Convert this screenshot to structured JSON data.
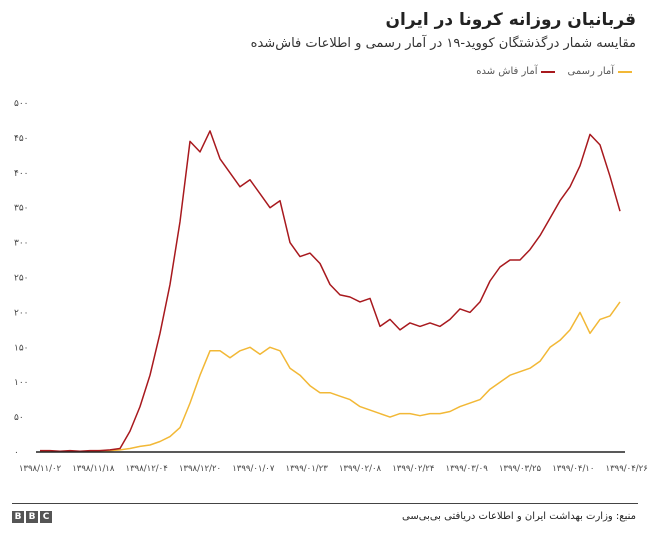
{
  "header": {
    "title": "قربانیان روزانه کرونا در ایران",
    "subtitle": "مقایسه شمار درگذشتگان کووید-۱۹ در آمار رسمی و اطلاعات فاش‌شده"
  },
  "legend": [
    {
      "label": "آمار رسمی",
      "color": "#f2b836"
    },
    {
      "label": "آمار فاش شده",
      "color": "#a8191e"
    }
  ],
  "footer": {
    "source": "منبع: وزارت بهداشت ایران و اطلاعات دریافتی بی‌بی‌سی",
    "logo": "BBC"
  },
  "chart_data": {
    "type": "line",
    "title": "قربانیان روزانه کرونا در ایران",
    "ylim": [
      0,
      500
    ],
    "yticks": [
      0,
      50,
      100,
      150,
      200,
      250,
      300,
      350,
      400,
      450,
      500
    ],
    "ytick_labels": [
      "۰",
      "۵۰",
      "۱۰۰",
      "۱۵۰",
      "۲۰۰",
      "۲۵۰",
      "۳۰۰",
      "۳۵۰",
      "۴۰۰",
      "۴۵۰",
      "۵۰۰"
    ],
    "x_labels": [
      "۱۳۹۸/۱۱/۰۲",
      "۱۳۹۸/۱۱/۱۸",
      "۱۳۹۸/۱۲/۰۴",
      "۱۳۹۸/۱۲/۲۰",
      "۱۳۹۹/۰۱/۰۷",
      "۱۳۹۹/۰۱/۲۳",
      "۱۳۹۹/۰۲/۰۸",
      "۱۳۹۹/۰۲/۲۴",
      "۱۳۹۹/۰۳/۰۹",
      "۱۳۹۹/۰۳/۲۵",
      "۱۳۹۹/۰۴/۱۰",
      "۱۳۹۹/۰۴/۲۶"
    ],
    "x_label_interval_days": 16,
    "sample_interval_days": 3,
    "series": [
      {
        "name": "آمار فاش شده",
        "color": "#a8191e",
        "values": [
          2,
          2,
          1,
          2,
          1,
          2,
          2,
          3,
          5,
          30,
          65,
          110,
          170,
          240,
          330,
          445,
          430,
          460,
          420,
          400,
          380,
          390,
          370,
          350,
          360,
          300,
          280,
          285,
          270,
          240,
          225,
          222,
          215,
          220,
          180,
          190,
          175,
          185,
          180,
          185,
          180,
          190,
          205,
          200,
          215,
          245,
          265,
          275,
          275,
          290,
          310,
          335,
          360,
          380,
          410,
          455,
          440,
          395,
          345
        ]
      },
      {
        "name": "آمار رسمی",
        "color": "#f2b836",
        "values": [
          1,
          1,
          1,
          1,
          1,
          1,
          2,
          2,
          3,
          5,
          8,
          10,
          15,
          22,
          35,
          70,
          110,
          145,
          145,
          135,
          145,
          150,
          140,
          150,
          145,
          120,
          110,
          95,
          85,
          85,
          80,
          75,
          65,
          60,
          55,
          50,
          55,
          55,
          52,
          55,
          55,
          58,
          65,
          70,
          75,
          90,
          100,
          110,
          115,
          120,
          130,
          150,
          160,
          175,
          200,
          170,
          190,
          195,
          215
        ]
      }
    ]
  }
}
